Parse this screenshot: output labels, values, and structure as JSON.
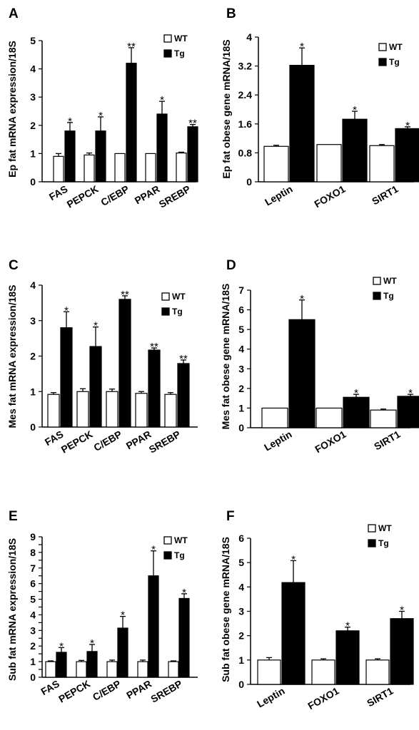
{
  "colors": {
    "wt": "#ffffff",
    "tg": "#000000"
  },
  "chart_data": [
    {
      "panel": "A",
      "type": "bar",
      "ylabel": "Ep fat mRNA expression/18S",
      "ylim": [
        0,
        5
      ],
      "yticks": [
        0,
        1,
        2,
        3,
        4,
        5
      ],
      "categories": [
        "FAS",
        "PEPCK",
        "C/EBP",
        "PPAR",
        "SREBP"
      ],
      "series": [
        {
          "name": "WT",
          "values": [
            0.9,
            0.95,
            1.0,
            1.0,
            1.02
          ],
          "errors": [
            0.1,
            0.07,
            0,
            0,
            0.03
          ]
        },
        {
          "name": "Tg",
          "values": [
            1.8,
            1.8,
            4.2,
            2.4,
            1.95
          ],
          "errors": [
            0.3,
            0.5,
            0.55,
            0.45,
            0.08
          ]
        }
      ],
      "significance": [
        "*",
        "*",
        "**",
        "*",
        "**"
      ],
      "legend": "top-right"
    },
    {
      "panel": "B",
      "type": "bar",
      "ylabel": "Ep fat obese gene mRNA/18S",
      "ylim": [
        0,
        4
      ],
      "yticks": [
        "0",
        "0.8",
        "1.6",
        "2.4",
        "3.2",
        "4"
      ],
      "ytick_values": [
        0,
        0.8,
        1.6,
        2.4,
        3.2,
        4
      ],
      "categories": [
        "Leptin",
        "FOXO1",
        "SIRT1"
      ],
      "series": [
        {
          "name": "WT",
          "values": [
            0.98,
            1.03,
            1.0
          ],
          "errors": [
            0.03,
            0,
            0.03
          ]
        },
        {
          "name": "Tg",
          "values": [
            3.22,
            1.73,
            1.47
          ],
          "errors": [
            0.48,
            0.22,
            0.05
          ]
        }
      ],
      "significance": [
        "*",
        "*",
        "*"
      ],
      "legend": "top-right"
    },
    {
      "panel": "C",
      "type": "bar",
      "ylabel": "Mes fat mRNA expression/18S",
      "ylim": [
        0,
        4
      ],
      "yticks": [
        0,
        1,
        2,
        3,
        4
      ],
      "categories": [
        "FAS",
        "PEPCK",
        "C/EBP",
        "PPAR",
        "SREBP"
      ],
      "series": [
        {
          "name": "WT",
          "values": [
            0.92,
            1.0,
            1.0,
            0.95,
            0.92
          ],
          "errors": [
            0.05,
            0.08,
            0.07,
            0.05,
            0.05
          ]
        },
        {
          "name": "Tg",
          "values": [
            2.8,
            2.27,
            3.6,
            2.17,
            1.79
          ],
          "errors": [
            0.45,
            0.55,
            0.1,
            0.06,
            0.1
          ]
        }
      ],
      "significance": [
        "*",
        "*",
        "**",
        "**",
        "**"
      ],
      "legend": "top-right"
    },
    {
      "panel": "D",
      "type": "bar",
      "ylabel": "Mes fat obese gene mRNA/18S",
      "ylim": [
        0,
        7
      ],
      "yticks": [
        0,
        1,
        2,
        3,
        4,
        5,
        6,
        7
      ],
      "categories": [
        "Leptin",
        "FOXO1",
        "SIRT1"
      ],
      "series": [
        {
          "name": "WT",
          "values": [
            1.0,
            1.0,
            0.9
          ],
          "errors": [
            0,
            0,
            0.05
          ]
        },
        {
          "name": "Tg",
          "values": [
            5.5,
            1.55,
            1.6
          ],
          "errors": [
            1.0,
            0.15,
            0.1
          ]
        }
      ],
      "significance": [
        "*",
        "*",
        "*"
      ],
      "legend": "top-right"
    },
    {
      "panel": "E",
      "type": "bar",
      "ylabel": "Sub fat mRNA expression/18S",
      "ylim": [
        0,
        9
      ],
      "yticks": [
        0,
        0.5,
        1,
        1.5,
        2,
        2.5,
        3,
        3.5,
        4,
        4.5,
        5,
        5.5,
        6,
        6.5,
        7,
        7.5,
        8,
        8.5,
        9
      ],
      "ytick_labels": [
        "0",
        "1",
        "2",
        "3",
        "4",
        "5",
        "6",
        "7",
        "8",
        "9"
      ],
      "categories": [
        "FAS",
        "PEPCK",
        "C/EBP",
        "PPAR",
        "SREBP"
      ],
      "series": [
        {
          "name": "WT",
          "values": [
            1.0,
            1.0,
            1.0,
            1.0,
            1.0
          ],
          "errors": [
            0.05,
            0.08,
            0.1,
            0.1,
            0.05
          ]
        },
        {
          "name": "Tg",
          "values": [
            1.6,
            1.65,
            3.15,
            6.5,
            5.05
          ],
          "errors": [
            0.3,
            0.45,
            0.75,
            1.6,
            0.3
          ]
        }
      ],
      "significance": [
        "*",
        "*",
        "*",
        "*",
        "*"
      ],
      "legend": "top-right"
    },
    {
      "panel": "F",
      "type": "bar",
      "ylabel": "Sub fat obese gene mRNA/18S",
      "ylim": [
        0,
        6
      ],
      "yticks": [
        0,
        1,
        2,
        3,
        4,
        5,
        6
      ],
      "categories": [
        "Leptin",
        "FOXO1",
        "SIRT1"
      ],
      "series": [
        {
          "name": "WT",
          "values": [
            1.0,
            1.0,
            1.0
          ],
          "errors": [
            0.1,
            0.05,
            0.05
          ]
        },
        {
          "name": "Tg",
          "values": [
            4.18,
            2.2,
            2.7
          ],
          "errors": [
            0.9,
            0.15,
            0.3
          ]
        }
      ],
      "significance": [
        "*",
        "*",
        "*"
      ],
      "legend": "top-right"
    }
  ]
}
